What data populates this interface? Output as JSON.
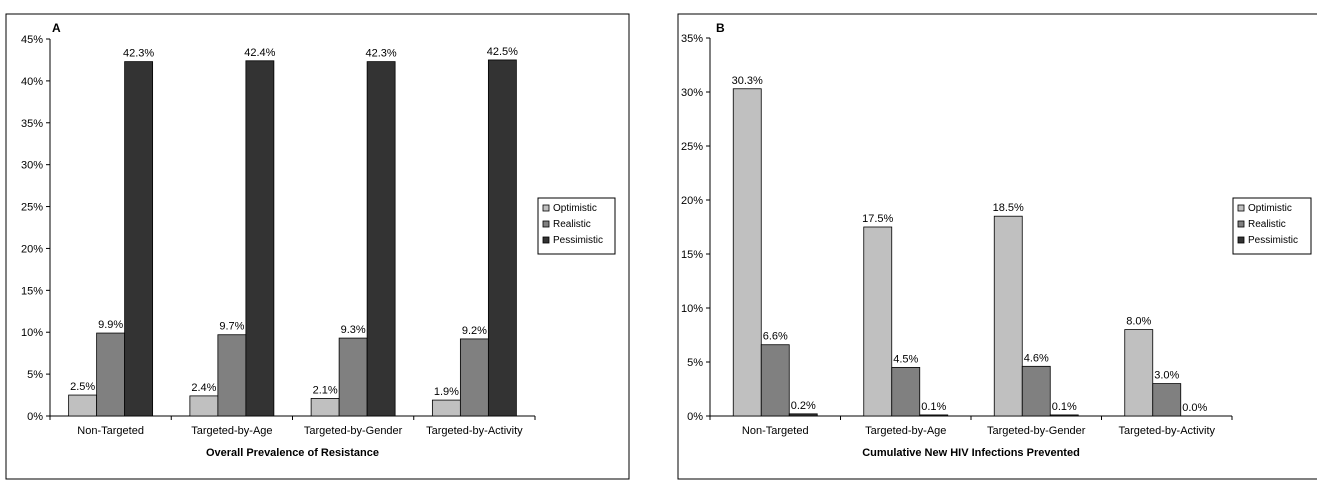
{
  "chart_data": [
    {
      "type": "bar",
      "panel_label": "A",
      "title": "",
      "xlabel": "Overall Prevalence of Resistance",
      "ylabel": "",
      "ylim": [
        0,
        45
      ],
      "yticks": [
        0,
        5,
        10,
        15,
        20,
        25,
        30,
        35,
        40,
        45
      ],
      "ytick_labels": [
        "0%",
        "5%",
        "10%",
        "15%",
        "20%",
        "25%",
        "30%",
        "35%",
        "40%",
        "45%"
      ],
      "categories": [
        "Non-Targeted",
        "Targeted-by-Age",
        "Targeted-by-Gender",
        "Targeted-by-Activity"
      ],
      "series": [
        {
          "name": "Optimistic",
          "color": "#c0c0c0",
          "values": [
            2.5,
            2.4,
            2.1,
            1.9
          ],
          "labels": [
            "2.5%",
            "2.4%",
            "2.1%",
            "1.9%"
          ]
        },
        {
          "name": "Realistic",
          "color": "#808080",
          "values": [
            9.9,
            9.7,
            9.3,
            9.2
          ],
          "labels": [
            "9.9%",
            "9.7%",
            "9.3%",
            "9.2%"
          ]
        },
        {
          "name": "Pessimistic",
          "color": "#333333",
          "values": [
            42.3,
            42.4,
            42.3,
            42.5
          ],
          "labels": [
            "42.3%",
            "42.4%",
            "42.3%",
            "42.5%"
          ]
        }
      ],
      "legend_position": "right",
      "grid": false
    },
    {
      "type": "bar",
      "panel_label": "B",
      "title": "",
      "xlabel": "Cumulative New HIV Infections Prevented",
      "ylabel": "",
      "ylim": [
        0,
        35
      ],
      "yticks": [
        0,
        5,
        10,
        15,
        20,
        25,
        30,
        35
      ],
      "ytick_labels": [
        "0%",
        "5%",
        "10%",
        "15%",
        "20%",
        "25%",
        "30%",
        "35%"
      ],
      "categories": [
        "Non-Targeted",
        "Targeted-by-Age",
        "Targeted-by-Gender",
        "Targeted-by-Activity"
      ],
      "series": [
        {
          "name": "Optimistic",
          "color": "#c0c0c0",
          "values": [
            30.3,
            17.5,
            18.5,
            8.0
          ],
          "labels": [
            "30.3%",
            "17.5%",
            "18.5%",
            "8.0%"
          ]
        },
        {
          "name": "Realistic",
          "color": "#808080",
          "values": [
            6.6,
            4.5,
            4.6,
            3.0
          ],
          "labels": [
            "6.6%",
            "4.5%",
            "4.6%",
            "3.0%"
          ]
        },
        {
          "name": "Pessimistic",
          "color": "#333333",
          "values": [
            0.2,
            0.1,
            0.1,
            0.0
          ],
          "labels": [
            "0.2%",
            "0.1%",
            "0.1%",
            "0.0%"
          ]
        }
      ],
      "legend_position": "right",
      "grid": false
    }
  ]
}
